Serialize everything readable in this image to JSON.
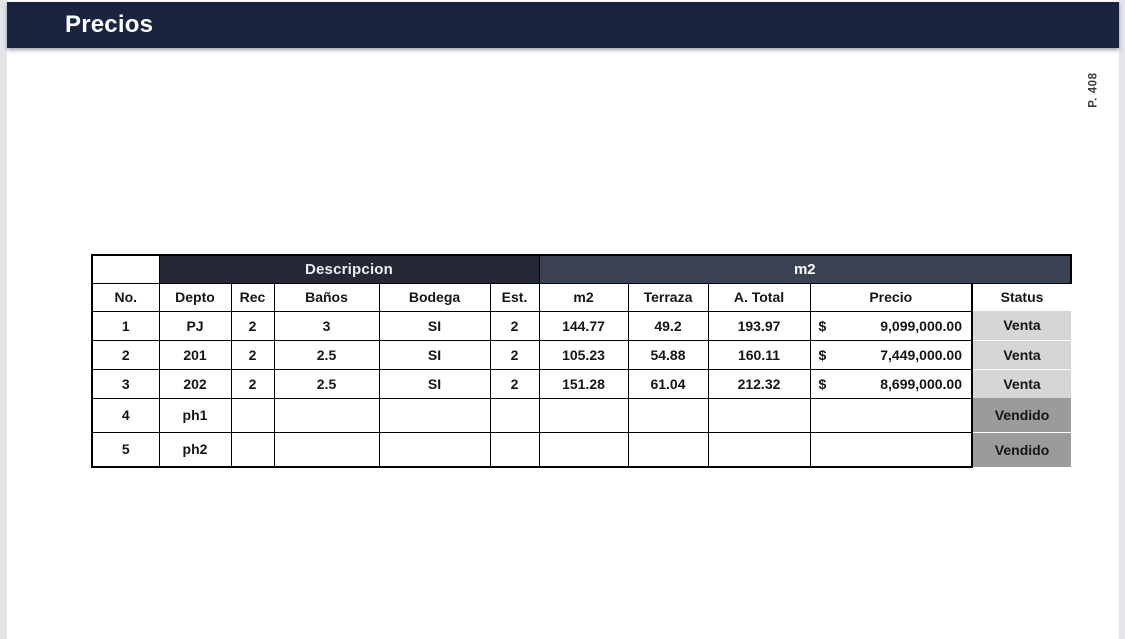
{
  "page": {
    "title": "Precios",
    "page_number": "P. 408"
  },
  "colors": {
    "title_bar": "#182440",
    "band_descripcion": "#242935",
    "band_m2": "#3B4254",
    "status_venta": "#D5D6D6",
    "status_vendido": "#9B9B9C",
    "page_background": "#E4E5E9",
    "table_border": "#000000"
  },
  "table": {
    "group_headers": [
      {
        "label": "",
        "span": 1
      },
      {
        "label": "Descripcion",
        "span": 5
      },
      {
        "label": "m2",
        "span": 5
      }
    ],
    "columns": [
      "No.",
      "Depto",
      "Rec",
      "Baños",
      "Bodega",
      "Est.",
      "m2",
      "Terraza",
      "A. Total",
      "Precio",
      "Status"
    ],
    "rows": [
      {
        "no": "1",
        "depto": "PJ",
        "rec": "2",
        "banos": "3",
        "bodega": "SI",
        "est": "2",
        "m2": "144.77",
        "terraza": "49.2",
        "a_total": "193.97",
        "precio_symbol": "$",
        "precio": "9,099,000.00",
        "status": "Venta"
      },
      {
        "no": "2",
        "depto": "201",
        "rec": "2",
        "banos": "2.5",
        "bodega": "SI",
        "est": "2",
        "m2": "105.23",
        "terraza": "54.88",
        "a_total": "160.11",
        "precio_symbol": "$",
        "precio": "7,449,000.00",
        "status": "Venta"
      },
      {
        "no": "3",
        "depto": "202",
        "rec": "2",
        "banos": "2.5",
        "bodega": "SI",
        "est": "2",
        "m2": "151.28",
        "terraza": "61.04",
        "a_total": "212.32",
        "precio_symbol": "$",
        "precio": "8,699,000.00",
        "status": "Venta"
      },
      {
        "no": "4",
        "depto": "ph1",
        "rec": "",
        "banos": "",
        "bodega": "",
        "est": "",
        "m2": "",
        "terraza": "",
        "a_total": "",
        "precio_symbol": "",
        "precio": "",
        "status": "Vendido"
      },
      {
        "no": "5",
        "depto": "ph2",
        "rec": "",
        "banos": "",
        "bodega": "",
        "est": "",
        "m2": "",
        "terraza": "",
        "a_total": "",
        "precio_symbol": "",
        "precio": "",
        "status": "Vendido"
      }
    ]
  }
}
